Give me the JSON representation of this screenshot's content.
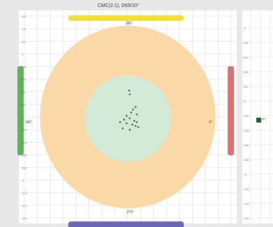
{
  "chart_data": [
    {
      "type": "scatter",
      "title": "CMC(2:1), D65/10°",
      "xlim": [
        -1.6,
        1.6
      ],
      "ylim": [
        -1.6,
        1.6
      ],
      "grid": true,
      "y_ticks": [
        "1.6",
        "1.4",
        "1.2",
        "1",
        "0.8",
        "0.6",
        "0.4",
        "0.2",
        "0",
        "-0.2",
        "-0.4",
        "-0.6",
        "-0.8",
        "-1",
        "-1.2",
        "-1.4",
        "-1.6"
      ],
      "annotations": {
        "top": "180°",
        "bottom": "270°",
        "left": "180°",
        "right": "0°"
      },
      "regions": [
        {
          "name": "outer",
          "color": "#fad8a8"
        },
        {
          "name": "inner",
          "color": "#d3ead9"
        }
      ],
      "side_bars": {
        "top": "#f2df3c",
        "bottom": "#6b66b5",
        "left": "#5fb15c",
        "right": ""
      },
      "points": [
        {
          "x": 0.02,
          "y": 0.42
        },
        {
          "x": 0.03,
          "y": 0.36
        },
        {
          "x": 0.08,
          "y": 0.12
        },
        {
          "x": 0.12,
          "y": 0.16
        },
        {
          "x": 0.05,
          "y": 0.07
        },
        {
          "x": 0.14,
          "y": 0.04
        },
        {
          "x": -0.02,
          "y": 0.02
        },
        {
          "x": -0.06,
          "y": -0.04
        },
        {
          "x": 0.03,
          "y": -0.02
        },
        {
          "x": 0.1,
          "y": -0.06
        },
        {
          "x": -0.12,
          "y": -0.08
        },
        {
          "x": -0.02,
          "y": -0.1
        },
        {
          "x": 0.07,
          "y": -0.12
        },
        {
          "x": 0.12,
          "y": -0.14
        },
        {
          "x": 0.16,
          "y": -0.16
        },
        {
          "x": -0.08,
          "y": -0.18
        },
        {
          "x": 0.03,
          "y": -0.2
        },
        {
          "x": 0.14,
          "y": -0.08
        }
      ]
    },
    {
      "type": "scatter",
      "partial": true,
      "y_ticks": [
        "1",
        "0.8",
        "0.6",
        "0.4",
        "0.2",
        "0",
        "-0.2",
        "-0.4",
        "-0.6",
        "-0.8",
        "-1",
        "-1.2",
        "-1.4",
        "-1.6"
      ],
      "annotation": "40°",
      "side_bars": {
        "left": "#e07070"
      },
      "points": [
        {
          "x": -1.2,
          "y": 0.0
        }
      ]
    }
  ],
  "colors": {
    "panel_bg": "#ffffff",
    "page_bg": "#e8e8e8",
    "grid": "#dadada",
    "point": "#1f5a2a"
  }
}
